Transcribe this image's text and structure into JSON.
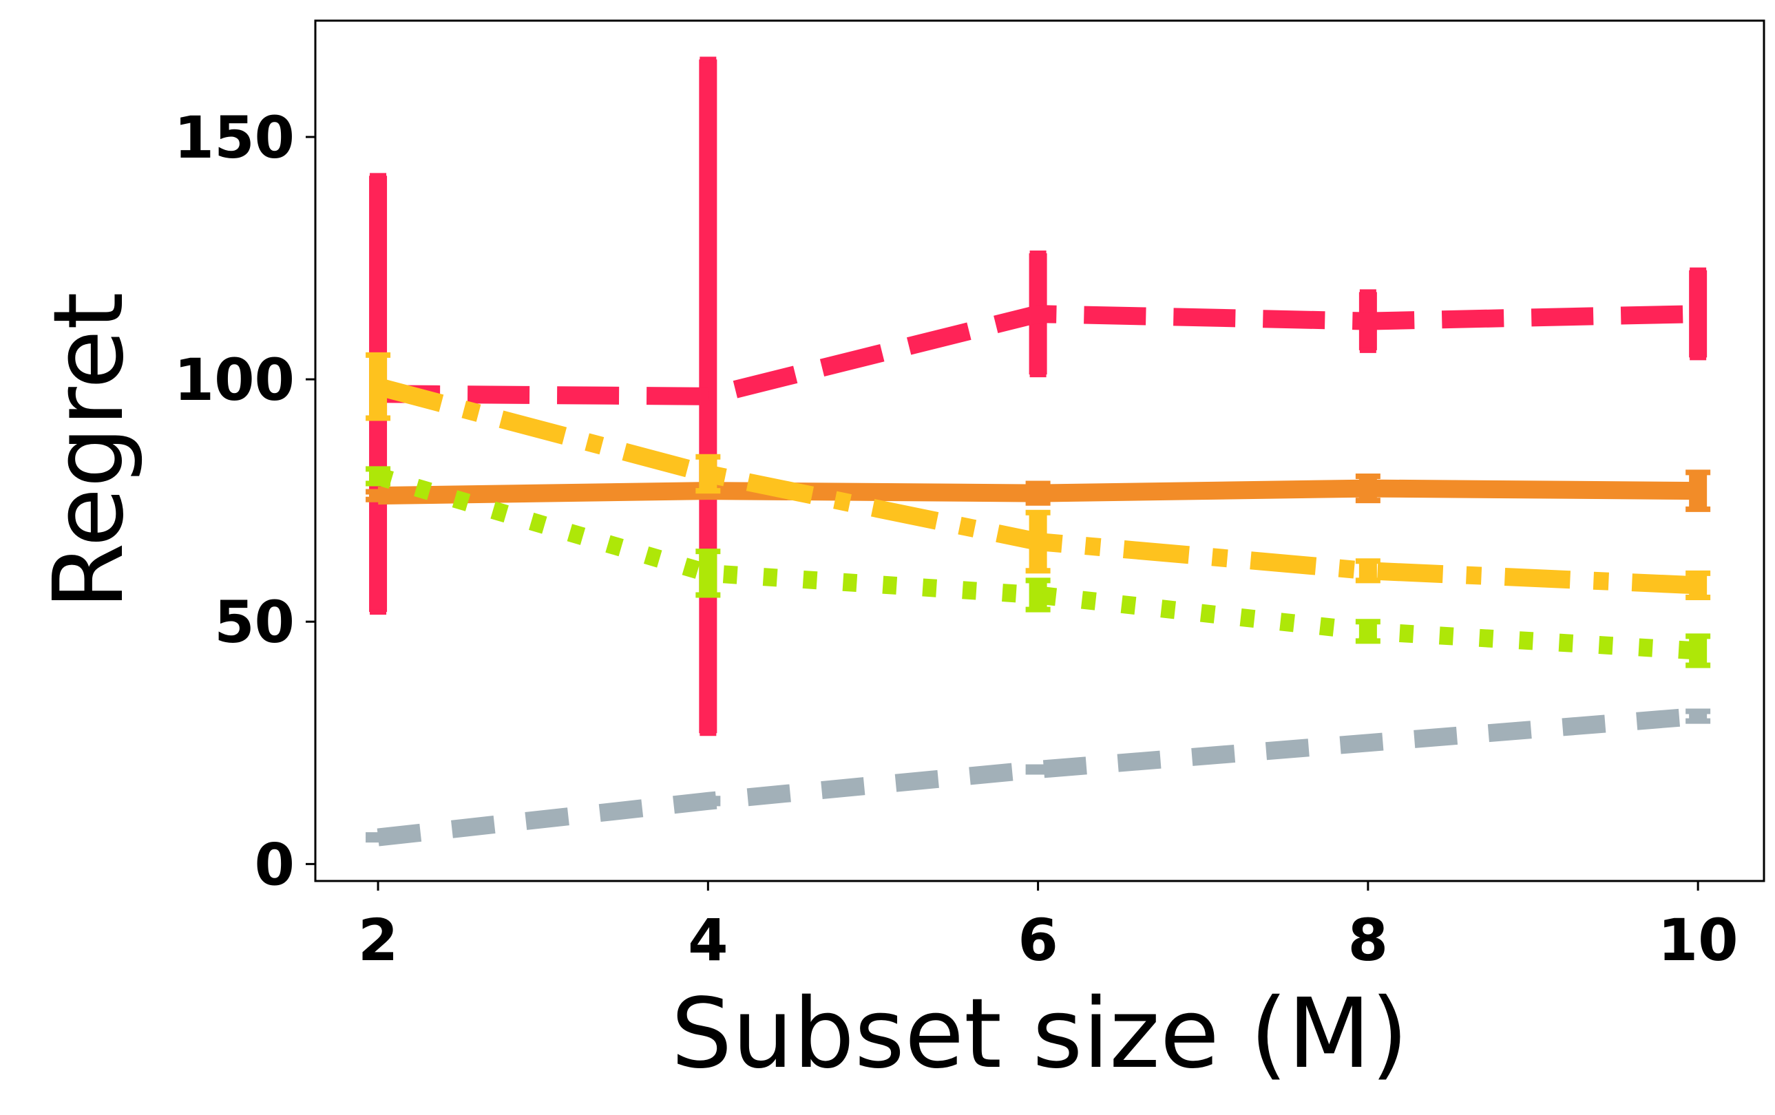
{
  "chart_data": {
    "type": "line",
    "title": "",
    "xlabel": "Subset size (M)",
    "ylabel": "Regret",
    "x": [
      2,
      4,
      6,
      8,
      10
    ],
    "xlim": [
      1.62,
      10.4
    ],
    "ylim": [
      -3.5,
      174
    ],
    "xticks": [
      2,
      4,
      6,
      8,
      10
    ],
    "yticks": [
      0,
      50,
      100,
      150
    ],
    "grid": false,
    "legend": "none",
    "series": [
      {
        "values": [
          97,
          96.5,
          113.5,
          112,
          113.5
        ],
        "errors": [
          45,
          69.5,
          12.5,
          6,
          9
        ],
        "color": "#ff2357",
        "dash": "long-dash",
        "cap": "long"
      },
      {
        "values": [
          76,
          77,
          76.5,
          77.5,
          77
        ],
        "errors": [
          0.8,
          1,
          2,
          2.5,
          3.8
        ],
        "color": "#f28c28",
        "dash": "solid",
        "cap": "short"
      },
      {
        "values": [
          98.5,
          80.5,
          66.5,
          60.5,
          57.5
        ],
        "errors": [
          6.5,
          3.5,
          6,
          2,
          2.5
        ],
        "color": "#fec21e",
        "dash": "dash-dot",
        "cap": "short"
      },
      {
        "values": [
          80,
          60,
          55.5,
          48,
          44
        ],
        "errors": [
          1.5,
          4.5,
          3,
          2,
          3
        ],
        "color": "#aee708",
        "dash": "dotted",
        "cap": "short"
      },
      {
        "values": [
          5.5,
          13,
          19.5,
          25,
          30.5
        ],
        "errors": [
          0.5,
          0.5,
          0.5,
          0.5,
          1
        ],
        "color": "#a2b0b8",
        "dash": "dashed",
        "cap": "short"
      }
    ]
  }
}
